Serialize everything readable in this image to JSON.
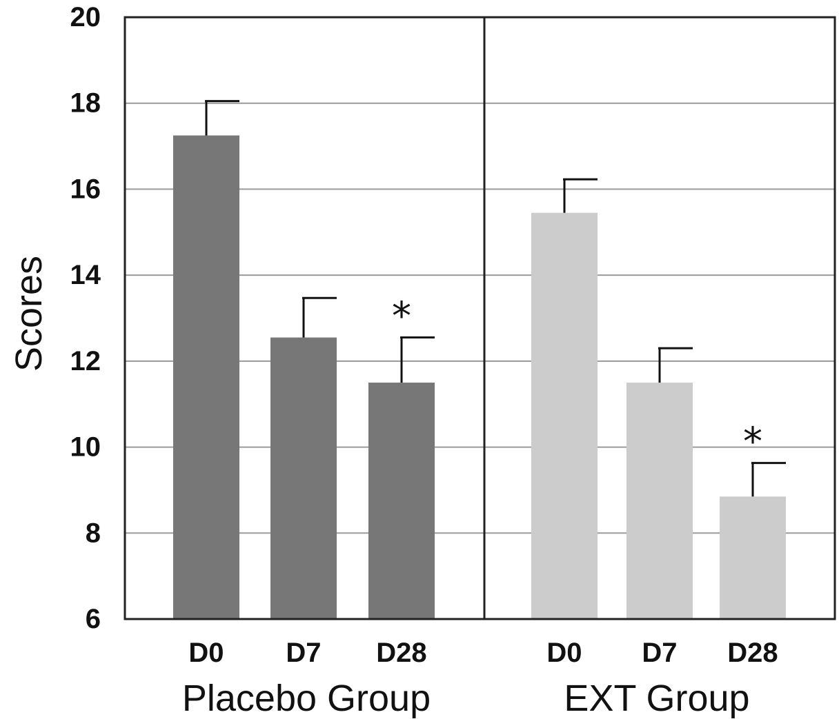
{
  "chart_data": {
    "type": "bar",
    "ylabel": "Scores",
    "ylim": [
      6,
      20
    ],
    "yticks": [
      6,
      8,
      10,
      12,
      14,
      16,
      18,
      20
    ],
    "grid": true,
    "groups": [
      {
        "name": "Placebo Group",
        "color": "#777777",
        "categories": [
          "D0",
          "D7",
          "D28"
        ],
        "values": [
          17.25,
          12.55,
          11.5
        ],
        "errors": [
          0.8,
          0.92,
          1.05
        ],
        "annotations": [
          "",
          "",
          "*"
        ]
      },
      {
        "name": "EXT Group",
        "color": "#cccccc",
        "categories": [
          "D0",
          "D7",
          "D28"
        ],
        "values": [
          15.45,
          11.5,
          8.85
        ],
        "errors": [
          0.78,
          0.8,
          0.78
        ],
        "annotations": [
          "",
          "",
          "*"
        ]
      }
    ]
  }
}
